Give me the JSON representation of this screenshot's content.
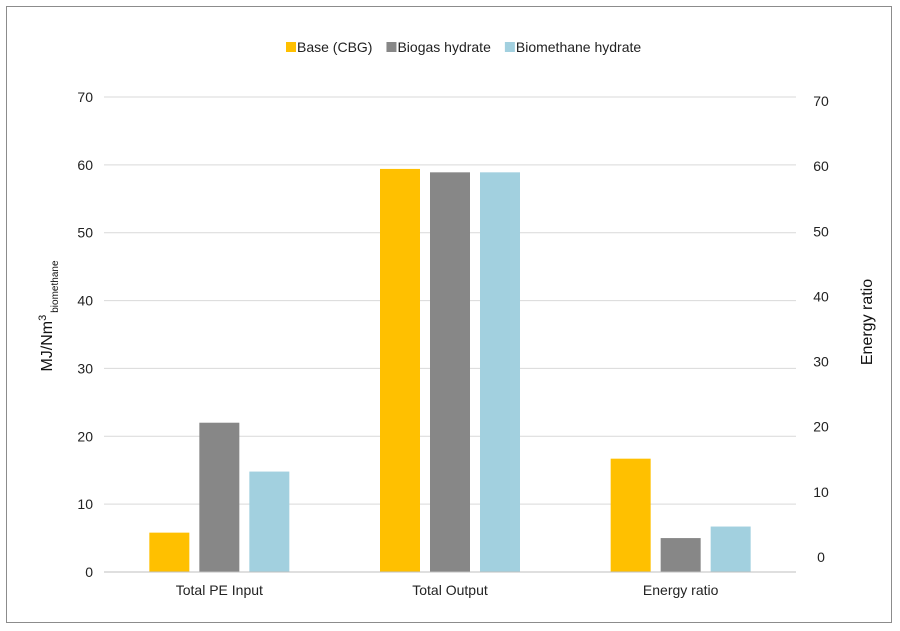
{
  "chart_data": {
    "type": "bar",
    "categories": [
      "Total PE Input",
      "Total Output",
      "Energy ratio"
    ],
    "series": [
      {
        "name": "Base (CBG)",
        "color": "#FFC000",
        "values": [
          5.8,
          59.4,
          16.7
        ]
      },
      {
        "name": "Biogas hydrate",
        "color": "#878787",
        "values": [
          22.0,
          58.9,
          5.0
        ]
      },
      {
        "name": "Biomethane hydrate",
        "color": "#A2D0DF",
        "values": [
          14.8,
          58.9,
          6.7
        ]
      }
    ],
    "ylabel_main": "MJ/Nm",
    "ylabel_sup": "3",
    "ylabel_sub": "biomethane",
    "y2label": "Energy ratio",
    "ylim": [
      0,
      70
    ],
    "yticks": [
      "0",
      "10",
      "20",
      "30",
      "40",
      "50",
      "60",
      "70"
    ],
    "y2ticks": [
      "0",
      "10",
      "20",
      "30",
      "40",
      "50",
      "60",
      "70"
    ],
    "grid": true,
    "legend_position": "top"
  }
}
